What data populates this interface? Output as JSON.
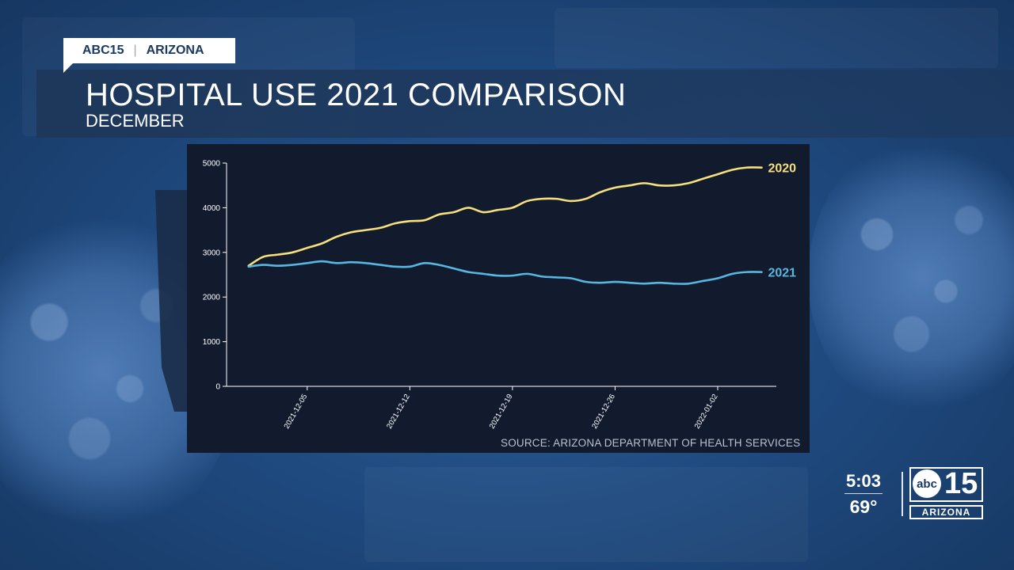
{
  "tag": {
    "station": "ABC15",
    "region": "ARIZONA"
  },
  "header": {
    "title": "HOSPITAL USE 2021 COMPARISON",
    "subtitle": "DECEMBER"
  },
  "source": "SOURCE: ARIZONA DEPARTMENT OF HEALTH SERVICES",
  "clock": {
    "time": "5:03",
    "temp": "69°"
  },
  "logo": {
    "abc": "abc",
    "num": "15",
    "region": "ARIZONA"
  },
  "colors": {
    "series_2020": "#f6df7c",
    "series_2021": "#57b7e0",
    "axis": "#ffffff"
  },
  "chart_data": {
    "type": "line",
    "title": "HOSPITAL USE 2021 COMPARISON",
    "xlabel": "",
    "ylabel": "",
    "ylim": [
      0,
      5000
    ],
    "yticks": [
      0,
      1000,
      2000,
      3000,
      4000,
      5000
    ],
    "xticks": [
      {
        "day": 5,
        "label": "2021-12-05"
      },
      {
        "day": 12,
        "label": "2021-12-12"
      },
      {
        "day": 19,
        "label": "2021-12-19"
      },
      {
        "day": 26,
        "label": "2021-12-26"
      },
      {
        "day": 33,
        "label": "2022-01-02"
      }
    ],
    "xlim": [
      -0.5,
      37
    ],
    "series": [
      {
        "name": "2020",
        "color": "#f6df7c",
        "x": [
          1,
          2,
          3,
          4,
          5,
          6,
          7,
          8,
          9,
          10,
          11,
          12,
          13,
          14,
          15,
          16,
          17,
          18,
          19,
          20,
          21,
          22,
          23,
          24,
          25,
          26,
          27,
          28,
          29,
          30,
          31,
          32,
          33,
          34,
          35,
          36
        ],
        "values": [
          2700,
          2900,
          2950,
          3000,
          3100,
          3200,
          3350,
          3450,
          3500,
          3550,
          3650,
          3700,
          3720,
          3850,
          3900,
          4000,
          3900,
          3950,
          4000,
          4150,
          4200,
          4200,
          4150,
          4200,
          4350,
          4450,
          4500,
          4550,
          4500,
          4500,
          4550,
          4650,
          4750,
          4850,
          4900,
          4900
        ]
      },
      {
        "name": "2021",
        "color": "#57b7e0",
        "x": [
          1,
          2,
          3,
          4,
          5,
          6,
          7,
          8,
          9,
          10,
          11,
          12,
          13,
          14,
          15,
          16,
          17,
          18,
          19,
          20,
          21,
          22,
          23,
          24,
          25,
          26,
          27,
          28,
          29,
          30,
          31,
          32,
          33,
          34,
          35,
          36
        ],
        "values": [
          2680,
          2720,
          2700,
          2720,
          2760,
          2800,
          2760,
          2780,
          2760,
          2720,
          2680,
          2680,
          2760,
          2720,
          2640,
          2560,
          2520,
          2480,
          2480,
          2520,
          2460,
          2440,
          2420,
          2340,
          2320,
          2340,
          2320,
          2300,
          2320,
          2300,
          2300,
          2360,
          2420,
          2520,
          2560,
          2560
        ]
      }
    ]
  }
}
